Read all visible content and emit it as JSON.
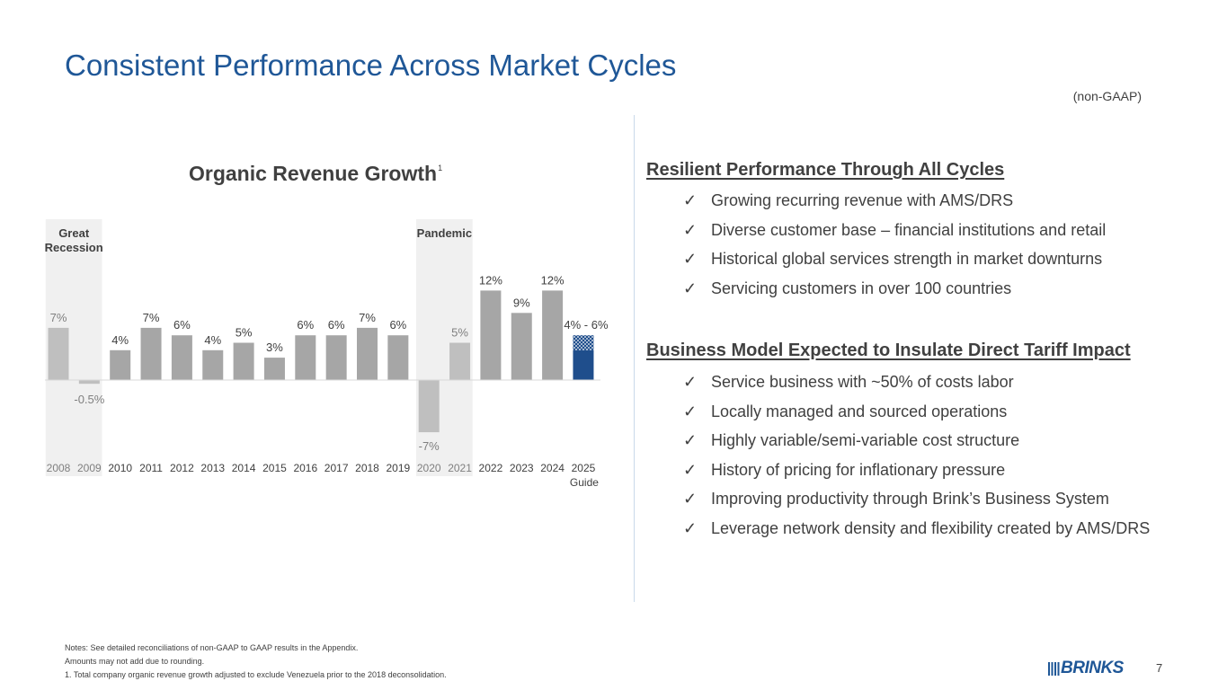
{
  "title": "Consistent Performance Across Market Cycles",
  "subtitle_note": "(non-GAAP)",
  "chart": {
    "title": "Organic Revenue Growth",
    "footnote_mark": "1"
  },
  "chart_data": {
    "type": "bar",
    "title": "Organic Revenue Growth",
    "categories": [
      "2008",
      "2009",
      "2010",
      "2011",
      "2012",
      "2013",
      "2014",
      "2015",
      "2016",
      "2017",
      "2018",
      "2019",
      "2020",
      "2021",
      "2022",
      "2023",
      "2024",
      "2025"
    ],
    "category_sublabels": {
      "2025": "Guide"
    },
    "values": [
      7,
      -0.5,
      4,
      7,
      6,
      4,
      5,
      3,
      6,
      6,
      7,
      6,
      -7,
      5,
      12,
      9,
      12,
      4
    ],
    "value_labels": [
      "7%",
      "-0.5%",
      "4%",
      "7%",
      "6%",
      "4%",
      "5%",
      "3%",
      "6%",
      "6%",
      "7%",
      "6%",
      "-7%",
      "5%",
      "12%",
      "9%",
      "12%",
      "4% - 6%"
    ],
    "guide_range": [
      4,
      6
    ],
    "ylim": [
      -7,
      12
    ],
    "grid": false,
    "shaded_periods": [
      {
        "label": "Great Recession",
        "categories": [
          "2008",
          "2009"
        ]
      },
      {
        "label": "Pandemic",
        "categories": [
          "2020",
          "2021"
        ]
      }
    ],
    "colors": {
      "bar": "#a6a6a6",
      "shaded_bar": "#bfbfbf",
      "shade": "#f0f0f0",
      "guide": "#1f4e8c"
    }
  },
  "sections": [
    {
      "heading": "Resilient Performance Through All Cycles",
      "items": [
        "Growing recurring revenue with AMS/DRS",
        "Diverse customer base – financial institutions and retail",
        "Historical global services strength in market downturns",
        "Servicing customers in over 100 countries"
      ]
    },
    {
      "heading": "Business Model Expected to Insulate Direct Tariff Impact",
      "items": [
        "Service business with ~50% of costs labor",
        "Locally managed and sourced operations",
        "Highly variable/semi-variable cost structure",
        "History of pricing for inflationary pressure",
        "Improving productivity through Brink’s Business System",
        "Leverage network density and flexibility created by AMS/DRS"
      ]
    }
  ],
  "check_glyph": "✓",
  "notes": [
    "Notes: See detailed reconciliations of non-GAAP to GAAP results in the Appendix.",
    "Amounts may not add due to rounding.",
    "1.  Total company organic revenue growth adjusted to exclude Venezuela prior to the 2018 deconsolidation."
  ],
  "logo": {
    "text": "BRINKS"
  },
  "page_number": "7"
}
